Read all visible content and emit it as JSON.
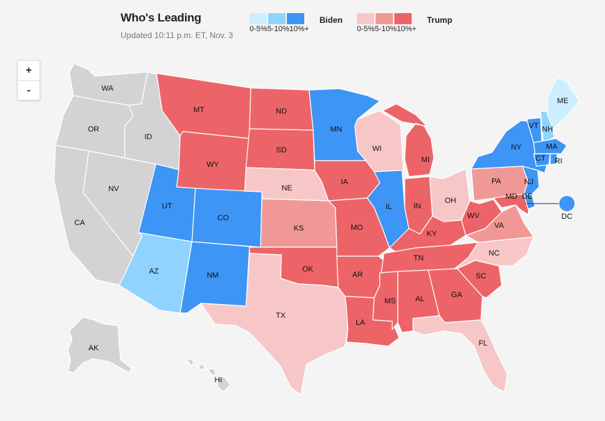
{
  "header": {
    "title": "Who's Leading",
    "updated": "Updated 10:11 p.m. ET, Nov. 3"
  },
  "legend": {
    "biden": {
      "label": "Biden",
      "bins": [
        "0-5%",
        "5-10%",
        "10%+"
      ],
      "colors": [
        "#cdeefe",
        "#8fd3fe",
        "#3d95f5"
      ]
    },
    "trump": {
      "label": "Trump",
      "bins": [
        "0-5%",
        "5-10%",
        "10%+"
      ],
      "colors": [
        "#f7c7c7",
        "#f09896",
        "#ec6467"
      ]
    }
  },
  "zoom": {
    "in": "+",
    "out": "-"
  },
  "colors": {
    "undecided": "#d3d3d3",
    "biden": [
      "#cdeefe",
      "#8fd3fe",
      "#3d95f5"
    ],
    "trump": [
      "#f7c7c7",
      "#f09896",
      "#ec6467"
    ]
  },
  "states": {
    "WA": {
      "leader": "none"
    },
    "OR": {
      "leader": "none"
    },
    "CA": {
      "leader": "none"
    },
    "NV": {
      "leader": "none"
    },
    "ID": {
      "leader": "none"
    },
    "AK": {
      "leader": "none"
    },
    "HI": {
      "leader": "none"
    },
    "MT": {
      "leader": "trump",
      "margin": "10%+"
    },
    "ND": {
      "leader": "trump",
      "margin": "10%+"
    },
    "SD": {
      "leader": "trump",
      "margin": "10%+"
    },
    "WY": {
      "leader": "trump",
      "margin": "10%+"
    },
    "NE": {
      "leader": "trump",
      "margin": "0-5%"
    },
    "KS": {
      "leader": "trump",
      "margin": "5-10%"
    },
    "OK": {
      "leader": "trump",
      "margin": "10%+"
    },
    "TX": {
      "leader": "trump",
      "margin": "0-5%"
    },
    "IA": {
      "leader": "trump",
      "margin": "10%+"
    },
    "MO": {
      "leader": "trump",
      "margin": "10%+"
    },
    "AR": {
      "leader": "trump",
      "margin": "10%+"
    },
    "LA": {
      "leader": "trump",
      "margin": "10%+"
    },
    "WI": {
      "leader": "trump",
      "margin": "0-5%"
    },
    "MI": {
      "leader": "trump",
      "margin": "10%+"
    },
    "IN": {
      "leader": "trump",
      "margin": "10%+"
    },
    "OH": {
      "leader": "trump",
      "margin": "0-5%"
    },
    "KY": {
      "leader": "trump",
      "margin": "10%+"
    },
    "TN": {
      "leader": "trump",
      "margin": "10%+"
    },
    "MS": {
      "leader": "trump",
      "margin": "10%+"
    },
    "AL": {
      "leader": "trump",
      "margin": "10%+"
    },
    "GA": {
      "leader": "trump",
      "margin": "10%+"
    },
    "SC": {
      "leader": "trump",
      "margin": "10%+"
    },
    "NC": {
      "leader": "trump",
      "margin": "0-5%"
    },
    "FL": {
      "leader": "trump",
      "margin": "0-5%"
    },
    "WV": {
      "leader": "trump",
      "margin": "10%+"
    },
    "VA": {
      "leader": "trump",
      "margin": "5-10%"
    },
    "PA": {
      "leader": "trump",
      "margin": "5-10%"
    },
    "MD": {
      "leader": "trump",
      "margin": "10%+"
    },
    "UT": {
      "leader": "biden",
      "margin": "10%+"
    },
    "CO": {
      "leader": "biden",
      "margin": "10%+"
    },
    "NM": {
      "leader": "biden",
      "margin": "10%+"
    },
    "AZ": {
      "leader": "biden",
      "margin": "5-10%"
    },
    "MN": {
      "leader": "biden",
      "margin": "10%+"
    },
    "IL": {
      "leader": "biden",
      "margin": "10%+"
    },
    "NY": {
      "leader": "biden",
      "margin": "10%+"
    },
    "VT": {
      "leader": "biden",
      "margin": "10%+"
    },
    "NH": {
      "leader": "biden",
      "margin": "5-10%"
    },
    "ME": {
      "leader": "biden",
      "margin": "0-5%"
    },
    "MA": {
      "leader": "biden",
      "margin": "10%+"
    },
    "CT": {
      "leader": "biden",
      "margin": "10%+"
    },
    "RI": {
      "leader": "biden",
      "margin": "10%+"
    },
    "NJ": {
      "leader": "biden",
      "margin": "10%+"
    },
    "DE": {
      "leader": "biden",
      "margin": "10%+"
    },
    "DC": {
      "leader": "biden",
      "margin": "10%+"
    }
  }
}
